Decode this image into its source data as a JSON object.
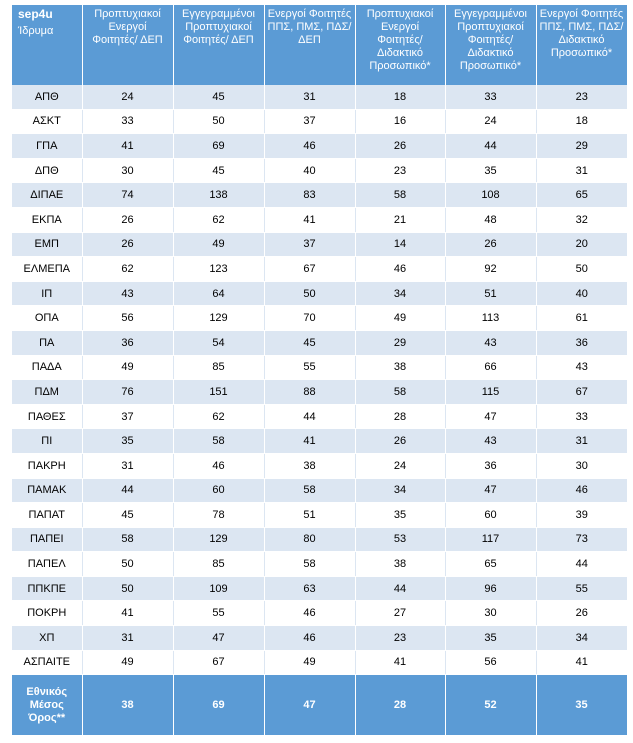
{
  "header": {
    "brand": "sep4u",
    "first_col": "Ίδρυμα",
    "columns": [
      "Προπτυχιακοί Ενεργοί Φοιτητές/ ΔΕΠ",
      "Εγγεγραμμένοι Προπτυχιακοί Φοιτητές/ ΔΕΠ",
      "Ενεργοί Φοιτητές ΠΠΣ, ΠΜΣ, ΠΔΣ/ ΔΕΠ",
      "Προπτυχιακοί Ενεργοί Φοιτητές/ Διδακτικό Προσωπικό*",
      "Εγγεγραμμένοι Προπτυχιακοί Φοιτητές/ Διδακτικό Προσωπικό*",
      "Ενεργοί Φοιτητές ΠΠΣ, ΠΜΣ, ΠΔΣ/ Διδακτικό Προσωπικό*"
    ]
  },
  "rows": [
    {
      "name": "ΑΠΘ",
      "values": [
        "24",
        "45",
        "31",
        "18",
        "33",
        "23"
      ]
    },
    {
      "name": "ΑΣΚΤ",
      "values": [
        "33",
        "50",
        "37",
        "16",
        "24",
        "18"
      ]
    },
    {
      "name": "ΓΠΑ",
      "values": [
        "41",
        "69",
        "46",
        "26",
        "44",
        "29"
      ]
    },
    {
      "name": "ΔΠΘ",
      "values": [
        "30",
        "45",
        "40",
        "23",
        "35",
        "31"
      ]
    },
    {
      "name": "ΔΙΠΑΕ",
      "values": [
        "74",
        "138",
        "83",
        "58",
        "108",
        "65"
      ]
    },
    {
      "name": "ΕΚΠΑ",
      "values": [
        "26",
        "62",
        "41",
        "21",
        "48",
        "32"
      ]
    },
    {
      "name": "ΕΜΠ",
      "values": [
        "26",
        "49",
        "37",
        "14",
        "26",
        "20"
      ]
    },
    {
      "name": "ΕΛΜΕΠΑ",
      "values": [
        "62",
        "123",
        "67",
        "46",
        "92",
        "50"
      ]
    },
    {
      "name": "ΙΠ",
      "values": [
        "43",
        "64",
        "50",
        "34",
        "51",
        "40"
      ]
    },
    {
      "name": "ΟΠΑ",
      "values": [
        "56",
        "129",
        "70",
        "49",
        "113",
        "61"
      ]
    },
    {
      "name": "ΠΑ",
      "values": [
        "36",
        "54",
        "45",
        "29",
        "43",
        "36"
      ]
    },
    {
      "name": "ΠΑΔΑ",
      "values": [
        "49",
        "85",
        "55",
        "38",
        "66",
        "43"
      ]
    },
    {
      "name": "ΠΔΜ",
      "values": [
        "76",
        "151",
        "88",
        "58",
        "115",
        "67"
      ]
    },
    {
      "name": "ΠΑΘΕΣ",
      "values": [
        "37",
        "62",
        "44",
        "28",
        "47",
        "33"
      ]
    },
    {
      "name": "ΠΙ",
      "values": [
        "35",
        "58",
        "41",
        "26",
        "43",
        "31"
      ]
    },
    {
      "name": "ΠΑΚΡΗ",
      "values": [
        "31",
        "46",
        "38",
        "24",
        "36",
        "30"
      ]
    },
    {
      "name": "ΠΑΜΑΚ",
      "values": [
        "44",
        "60",
        "58",
        "34",
        "47",
        "46"
      ]
    },
    {
      "name": "ΠΑΠΑΤ",
      "values": [
        "45",
        "78",
        "51",
        "35",
        "60",
        "39"
      ]
    },
    {
      "name": "ΠΑΠΕΙ",
      "values": [
        "58",
        "129",
        "80",
        "53",
        "117",
        "73"
      ]
    },
    {
      "name": "ΠΑΠΕΛ",
      "values": [
        "50",
        "85",
        "58",
        "38",
        "65",
        "44"
      ]
    },
    {
      "name": "ΠΠΚΠΕ",
      "values": [
        "50",
        "109",
        "63",
        "44",
        "96",
        "55"
      ]
    },
    {
      "name": "ΠΟΚΡΗ",
      "values": [
        "41",
        "55",
        "46",
        "27",
        "30",
        "26"
      ]
    },
    {
      "name": "ΧΠ",
      "values": [
        "31",
        "47",
        "46",
        "23",
        "35",
        "34"
      ]
    },
    {
      "name": "ΑΣΠΑΙΤΕ",
      "values": [
        "49",
        "67",
        "49",
        "41",
        "56",
        "41"
      ]
    }
  ],
  "total": {
    "name": "Εθνικός Μέσος Όρος**",
    "values": [
      "38",
      "69",
      "47",
      "28",
      "52",
      "35"
    ]
  }
}
